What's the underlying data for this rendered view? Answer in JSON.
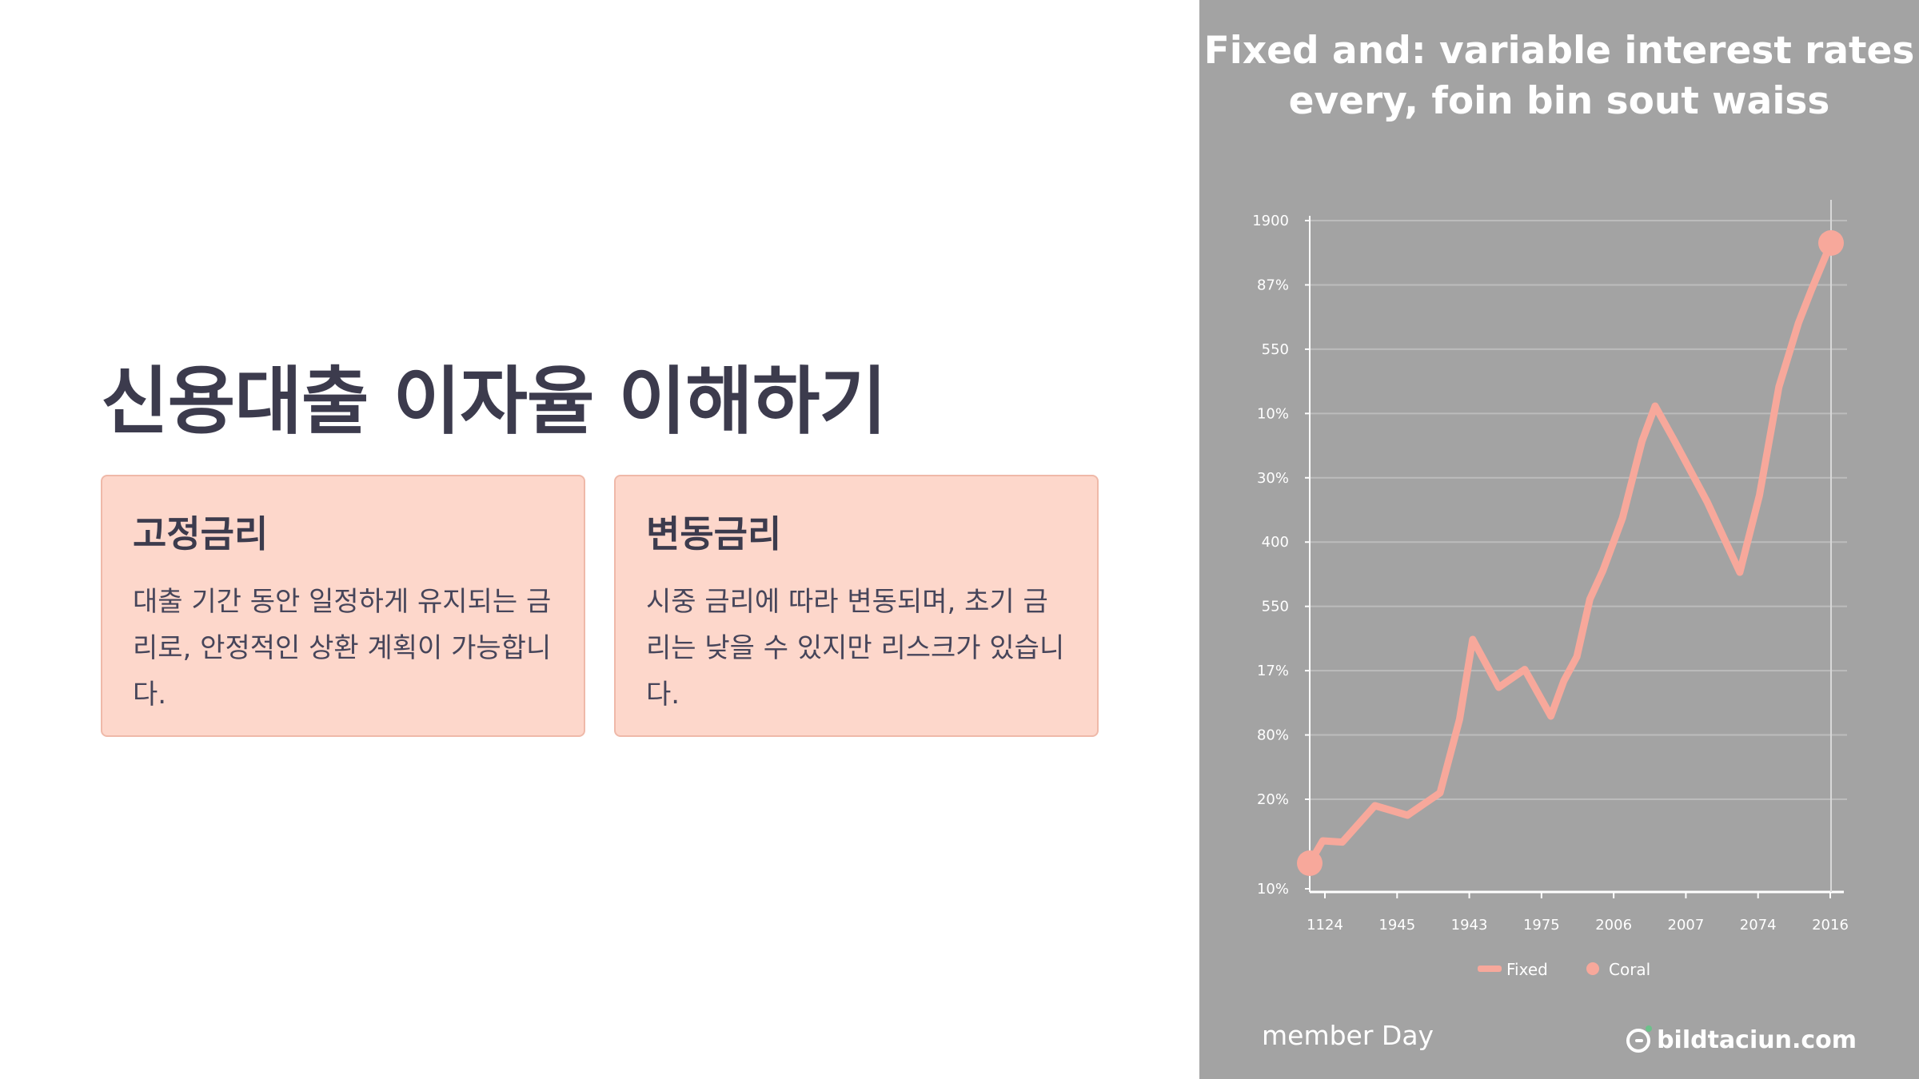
{
  "slide": {
    "title": "신용대출 이자율 이해하기",
    "cards": [
      {
        "title": "고정금리",
        "text": "대출 기간 동안 일정하게 유지되는 금리로, 안정적인 상환 계획이 가능합니다."
      },
      {
        "title": "변동금리",
        "text": "시중 금리에 따라 변동되며, 초기 금리는 낮을 수 있지만 리스크가 있습니다."
      }
    ]
  },
  "chart_data": {
    "type": "line",
    "title": "Fixed and: variable interest rates every, foin bin sout waiss",
    "y_tick_labels": [
      "1900",
      "87%",
      "550",
      "10%",
      "30%",
      "400",
      "550",
      "17%",
      "80%",
      "20%",
      "10%"
    ],
    "x_tick_labels": [
      "1124",
      "1945",
      "1943",
      "1975",
      "2006",
      "2007",
      "2074",
      "2016"
    ],
    "legend": [
      "Fixed",
      "Coral"
    ],
    "legend_position": "bottom",
    "grid": true,
    "series_color": "#f7a89b",
    "series": [
      {
        "name": "Fixed",
        "x": [
          0,
          0.2,
          0.5,
          1.0,
          1.5,
          2.0,
          2.3,
          2.5,
          2.9,
          3.3,
          3.7,
          3.9,
          4.1,
          4.3,
          4.5,
          4.8,
          5.1,
          5.3,
          5.6,
          6.1,
          6.6,
          6.9,
          7.2,
          7.5,
          7.7,
          8.0
        ],
        "y": [
          0.45,
          0.8,
          0.78,
          1.35,
          1.2,
          1.55,
          2.7,
          3.95,
          3.2,
          3.48,
          2.75,
          3.3,
          3.68,
          4.58,
          5.03,
          5.85,
          7.05,
          7.6,
          7.05,
          6.1,
          5.0,
          6.2,
          7.9,
          8.9,
          9.42,
          10.15
        ]
      }
    ],
    "endpoints_marked": true
  },
  "footer": {
    "left": "member Day",
    "right": "bildtaciun.com"
  }
}
